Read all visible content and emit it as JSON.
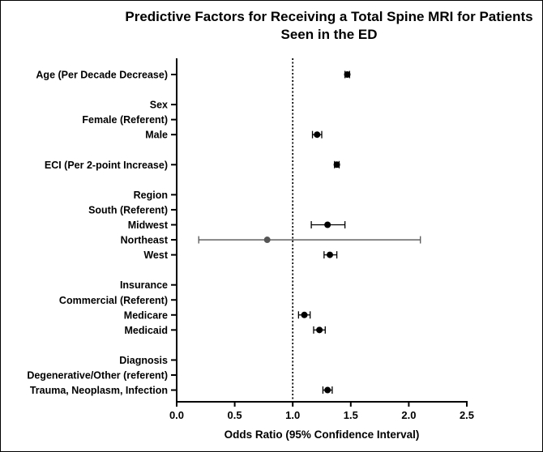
{
  "chart_data": {
    "type": "forest",
    "title_lines": [
      "Predictive Factors for Receiving a Total Spine MRI for Patients",
      "Seen in the ED"
    ],
    "xlabel": "Odds Ratio (95% Confidence Interval)",
    "xlim": [
      0.0,
      2.5
    ],
    "xticks": [
      "0.0",
      "0.5",
      "1.0",
      "1.5",
      "2.0",
      "2.5"
    ],
    "reference_line": 1.0,
    "reference_line_style": "dotted",
    "rows": [
      {
        "label": "Age (Per Decade Decrease)",
        "or": 1.47,
        "lo": 1.45,
        "hi": 1.49
      },
      {
        "label": "",
        "or": null
      },
      {
        "label": "Sex",
        "or": null
      },
      {
        "label": "Female (Referent)",
        "or": null
      },
      {
        "label": "Male",
        "or": 1.21,
        "lo": 1.17,
        "hi": 1.25
      },
      {
        "label": "",
        "or": null
      },
      {
        "label": "ECI (Per 2-point Increase)",
        "or": 1.38,
        "lo": 1.36,
        "hi": 1.4
      },
      {
        "label": "",
        "or": null
      },
      {
        "label": "Region",
        "or": null
      },
      {
        "label": "South (Referent)",
        "or": null
      },
      {
        "label": "Midwest",
        "or": 1.3,
        "lo": 1.16,
        "hi": 1.45
      },
      {
        "label": "Northeast",
        "or": 0.78,
        "lo": 0.19,
        "hi": 2.1,
        "color": "#555555"
      },
      {
        "label": "West",
        "or": 1.32,
        "lo": 1.27,
        "hi": 1.38
      },
      {
        "label": "",
        "or": null
      },
      {
        "label": "Insurance",
        "or": null
      },
      {
        "label": "Commercial (Referent)",
        "or": null
      },
      {
        "label": "Medicare",
        "or": 1.1,
        "lo": 1.05,
        "hi": 1.15
      },
      {
        "label": "Medicaid",
        "or": 1.23,
        "lo": 1.18,
        "hi": 1.28
      },
      {
        "label": "",
        "or": null
      },
      {
        "label": "Diagnosis",
        "or": null
      },
      {
        "label": "Degenerative/Other (referent)",
        "or": null
      },
      {
        "label": "Trauma, Neoplasm, Infection",
        "or": 1.3,
        "lo": 1.26,
        "hi": 1.34
      }
    ],
    "point_color": "#000000",
    "grid": false
  }
}
